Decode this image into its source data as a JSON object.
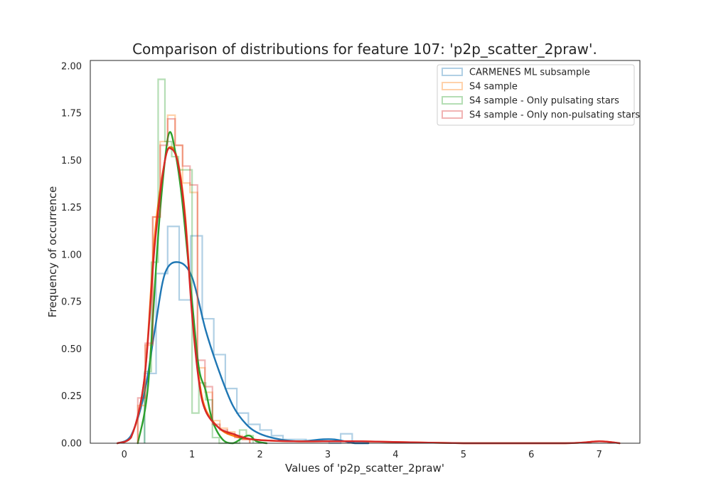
{
  "chart_data": {
    "type": "histogram_kde",
    "title": "Comparison of distributions for feature 107: 'p2p_scatter_2praw'.",
    "xlabel": "Values of 'p2p_scatter_2praw'",
    "ylabel": "Frequency of occurrence",
    "xlim": [
      -0.5,
      7.6
    ],
    "ylim": [
      0,
      2.03
    ],
    "xticks": [
      0,
      1,
      2,
      3,
      4,
      5,
      6,
      7
    ],
    "yticks": [
      0.0,
      0.25,
      0.5,
      0.75,
      1.0,
      1.25,
      1.5,
      1.75,
      2.0
    ],
    "ytick_labels": [
      "0.00",
      "0.25",
      "0.50",
      "0.75",
      "1.00",
      "1.25",
      "1.50",
      "1.75",
      "2.00"
    ],
    "grid": false,
    "legend_position": "top-right",
    "series": [
      {
        "name": "CARMENES ML subsample",
        "color": "#1f77b4",
        "hist": {
          "start": 0.3,
          "width": 0.17,
          "values": [
            0.37,
            0.9,
            1.15,
            0.76,
            1.1,
            0.66,
            0.47,
            0.29,
            0.16,
            0.1,
            0.07,
            0.04,
            0.02,
            0.02,
            0.01,
            0.01,
            0.0,
            0.05,
            0.0
          ]
        },
        "kde": {
          "x": [
            -0.1,
            0.1,
            0.3,
            0.45,
            0.6,
            0.8,
            1.0,
            1.2,
            1.4,
            1.6,
            1.8,
            2.0,
            2.3,
            2.6,
            2.9,
            3.1,
            3.4,
            3.6
          ],
          "y": [
            0.0,
            0.04,
            0.27,
            0.6,
            0.9,
            0.96,
            0.88,
            0.6,
            0.38,
            0.2,
            0.1,
            0.05,
            0.02,
            0.01,
            0.02,
            0.02,
            0.0,
            0.0
          ]
        }
      },
      {
        "name": "S4 sample",
        "color": "#ff7f0e",
        "hist": {
          "start": 0.2,
          "width": 0.11,
          "values": [
            0.2,
            0.52,
            1.2,
            1.6,
            1.74,
            1.58,
            1.38,
            1.33,
            0.4,
            0.27,
            0.12,
            0.08,
            0.06,
            0.04,
            0.02
          ]
        },
        "kde": {
          "x": [
            -0.1,
            0.1,
            0.3,
            0.45,
            0.6,
            0.7,
            0.8,
            0.9,
            1.0,
            1.1,
            1.2,
            1.4,
            1.6,
            1.9,
            2.5,
            3.5,
            5.0,
            6.5,
            7.0,
            7.3
          ],
          "y": [
            0.0,
            0.03,
            0.35,
            1.1,
            1.5,
            1.57,
            1.48,
            1.2,
            0.7,
            0.35,
            0.18,
            0.08,
            0.04,
            0.02,
            0.01,
            0.01,
            0.0,
            0.0,
            0.01,
            0.0
          ]
        }
      },
      {
        "name": "S4 sample - Only pulsating stars",
        "color": "#2ca02c",
        "hist": {
          "start": 0.3,
          "width": 0.1,
          "values": [
            0.38,
            0.96,
            1.93,
            1.6,
            1.52,
            1.45,
            1.45,
            0.16,
            0.32,
            0.23,
            0.03,
            0.0,
            0.0,
            0.0,
            0.07,
            0.04
          ]
        },
        "kde": {
          "x": [
            0.2,
            0.35,
            0.5,
            0.6,
            0.67,
            0.75,
            0.85,
            1.0,
            1.1,
            1.2,
            1.3,
            1.45,
            1.6,
            1.75,
            1.85,
            1.95,
            2.1
          ],
          "y": [
            0.0,
            0.3,
            1.1,
            1.5,
            1.65,
            1.55,
            1.3,
            0.75,
            0.4,
            0.28,
            0.12,
            0.02,
            0.0,
            0.03,
            0.04,
            0.01,
            0.0
          ]
        }
      },
      {
        "name": "S4 sample - Only non-pulsating stars",
        "color": "#d62728",
        "hist": {
          "start": 0.2,
          "width": 0.11,
          "values": [
            0.24,
            0.53,
            1.2,
            1.58,
            1.72,
            1.58,
            1.47,
            1.37,
            0.44,
            0.3,
            0.1,
            0.07,
            0.05,
            0.03,
            0.02
          ]
        },
        "kde": {
          "x": [
            -0.1,
            0.1,
            0.3,
            0.45,
            0.6,
            0.7,
            0.8,
            0.9,
            1.0,
            1.1,
            1.2,
            1.4,
            1.6,
            1.9,
            2.5,
            3.5,
            5.0,
            6.5,
            7.0,
            7.3
          ],
          "y": [
            0.0,
            0.03,
            0.35,
            1.05,
            1.5,
            1.56,
            1.47,
            1.18,
            0.68,
            0.33,
            0.17,
            0.08,
            0.05,
            0.02,
            0.01,
            0.01,
            0.0,
            0.0,
            0.01,
            0.0
          ]
        }
      }
    ]
  }
}
